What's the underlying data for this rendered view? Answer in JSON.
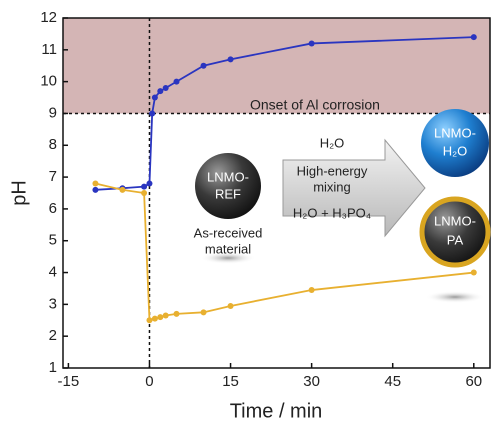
{
  "chart_data": {
    "type": "line",
    "x_label": "Time / min",
    "y_label": "pH",
    "xlim": [
      -16,
      63
    ],
    "ylim": [
      1,
      12
    ],
    "xticks": [
      -15,
      0,
      15,
      30,
      45,
      60
    ],
    "yticks": [
      1,
      2,
      3,
      4,
      5,
      6,
      7,
      8,
      9,
      10,
      11,
      12
    ],
    "band": {
      "from": 9,
      "to": 12,
      "color": "#c9a3a3"
    },
    "vline": 0,
    "series": [
      {
        "color": "#2a35c0",
        "x": [
          -10,
          -5,
          -1,
          0,
          0.5,
          1,
          2,
          3,
          5,
          10,
          15,
          30,
          60
        ],
        "values": [
          6.6,
          6.65,
          6.7,
          6.8,
          9.0,
          9.5,
          9.7,
          9.8,
          10.0,
          10.5,
          10.7,
          11.2,
          11.4
        ]
      },
      {
        "color": "#e8b030",
        "x": [
          -10,
          -5,
          -1,
          0,
          1,
          2,
          3,
          5,
          10,
          15,
          30,
          60
        ],
        "values": [
          6.8,
          6.6,
          6.5,
          2.5,
          2.55,
          2.6,
          2.65,
          2.7,
          2.75,
          2.95,
          3.45,
          4.0
        ]
      }
    ],
    "annotations": {
      "onset": "Onset of Al corrosion",
      "ref": [
        "LNMO-",
        "REF"
      ],
      "ref_caption": [
        "As-received",
        "material"
      ],
      "arrow_top": "H₂O",
      "arrow_mid": [
        "High-energy",
        "mixing"
      ],
      "arrow_bottom": "H₂O + H₃PO₄",
      "h2o": [
        "LNMO-",
        "H₂O"
      ],
      "pa": [
        "LNMO-",
        "PA"
      ]
    }
  }
}
